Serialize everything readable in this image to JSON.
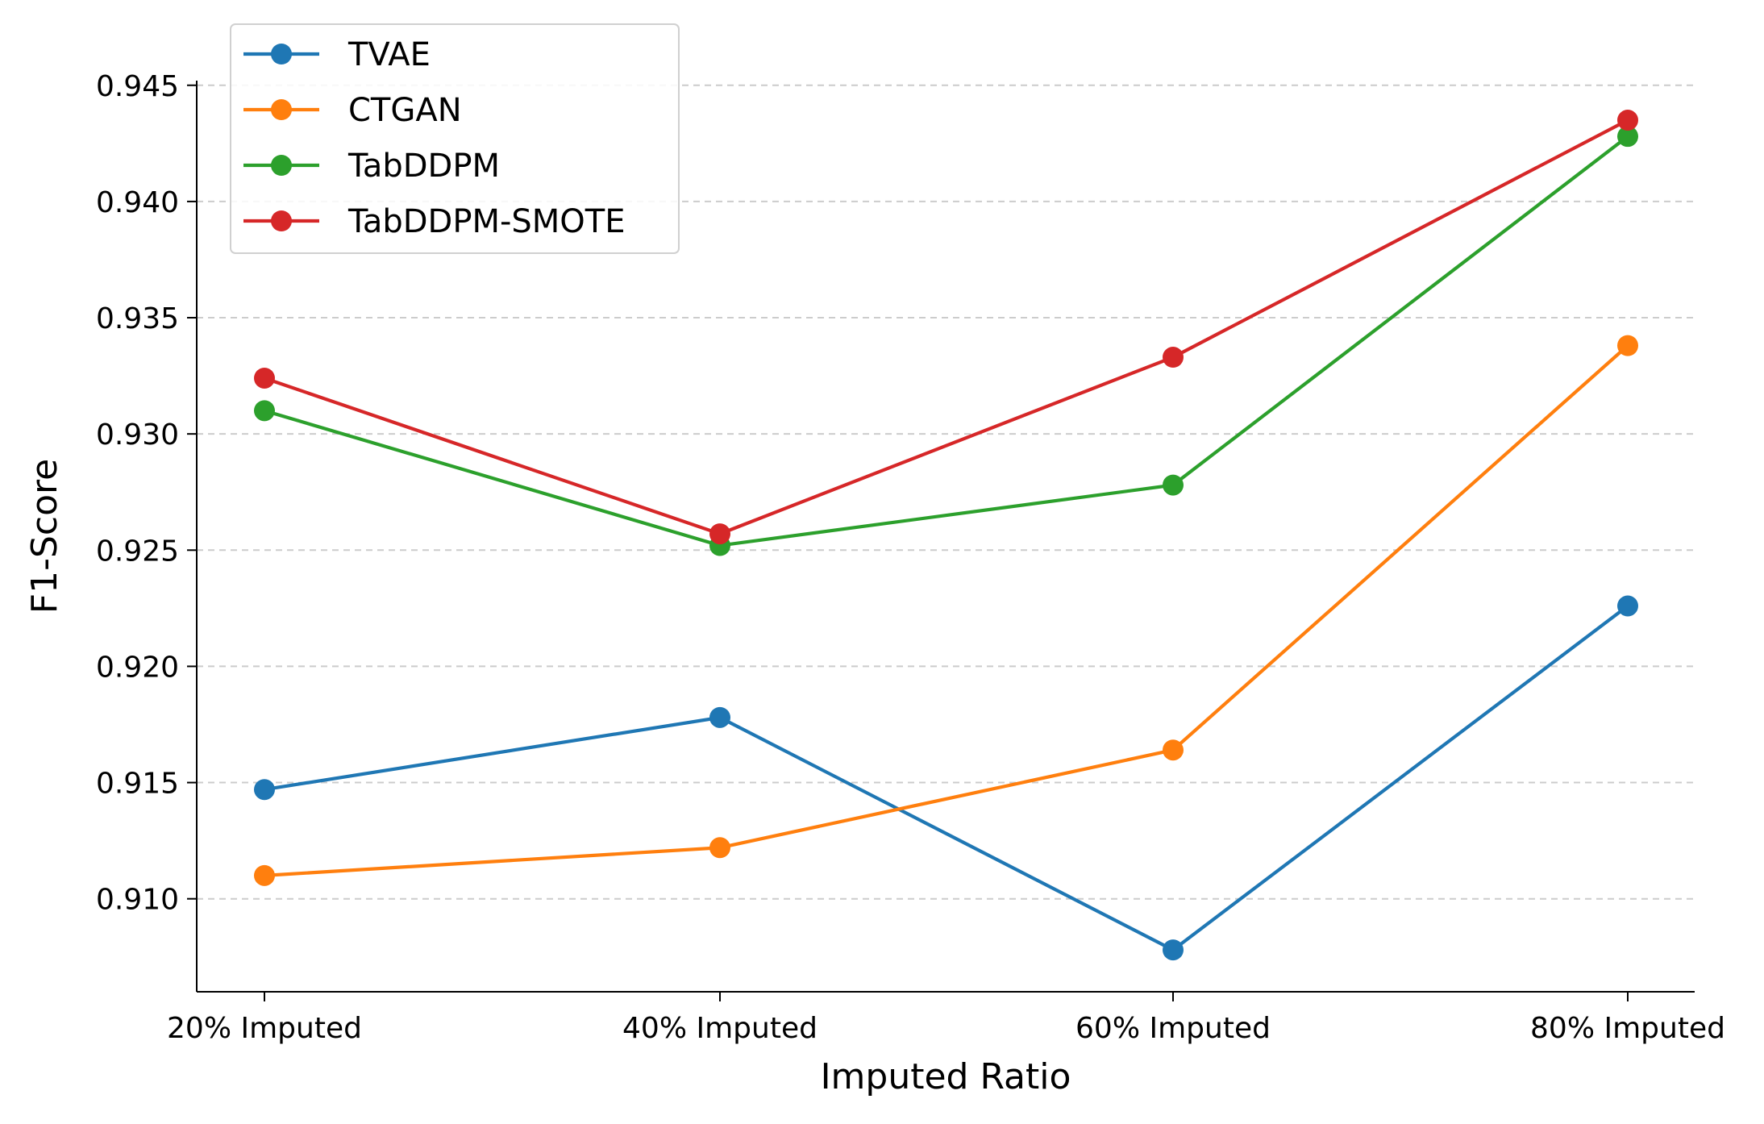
{
  "chart_data": {
    "type": "line",
    "title": "",
    "xlabel": "Imputed Ratio",
    "ylabel": "F1-Score",
    "categories": [
      "20% Imputed",
      "40% Imputed",
      "60% Imputed",
      "80% Imputed"
    ],
    "ylim": [
      0.906,
      0.9452
    ],
    "yticks": [
      0.91,
      0.915,
      0.92,
      0.925,
      0.93,
      0.935,
      0.94,
      0.945
    ],
    "ytick_labels": [
      "0.910",
      "0.915",
      "0.920",
      "0.925",
      "0.930",
      "0.935",
      "0.940",
      "0.945"
    ],
    "grid": "y-dashed",
    "legend_placement": "top-left",
    "series": [
      {
        "name": "TVAE",
        "color": "#1f77b4",
        "values": [
          0.9147,
          0.9178,
          0.9078,
          0.9226
        ]
      },
      {
        "name": "CTGAN",
        "color": "#ff7f0e",
        "values": [
          0.911,
          0.9122,
          0.9164,
          0.9338
        ]
      },
      {
        "name": "TabDDPM",
        "color": "#2ca02c",
        "values": [
          0.931,
          0.9252,
          0.9278,
          0.9428
        ]
      },
      {
        "name": "TabDDPM-SMOTE",
        "color": "#d62728",
        "values": [
          0.9324,
          0.9257,
          0.9333,
          0.9435
        ]
      }
    ]
  }
}
